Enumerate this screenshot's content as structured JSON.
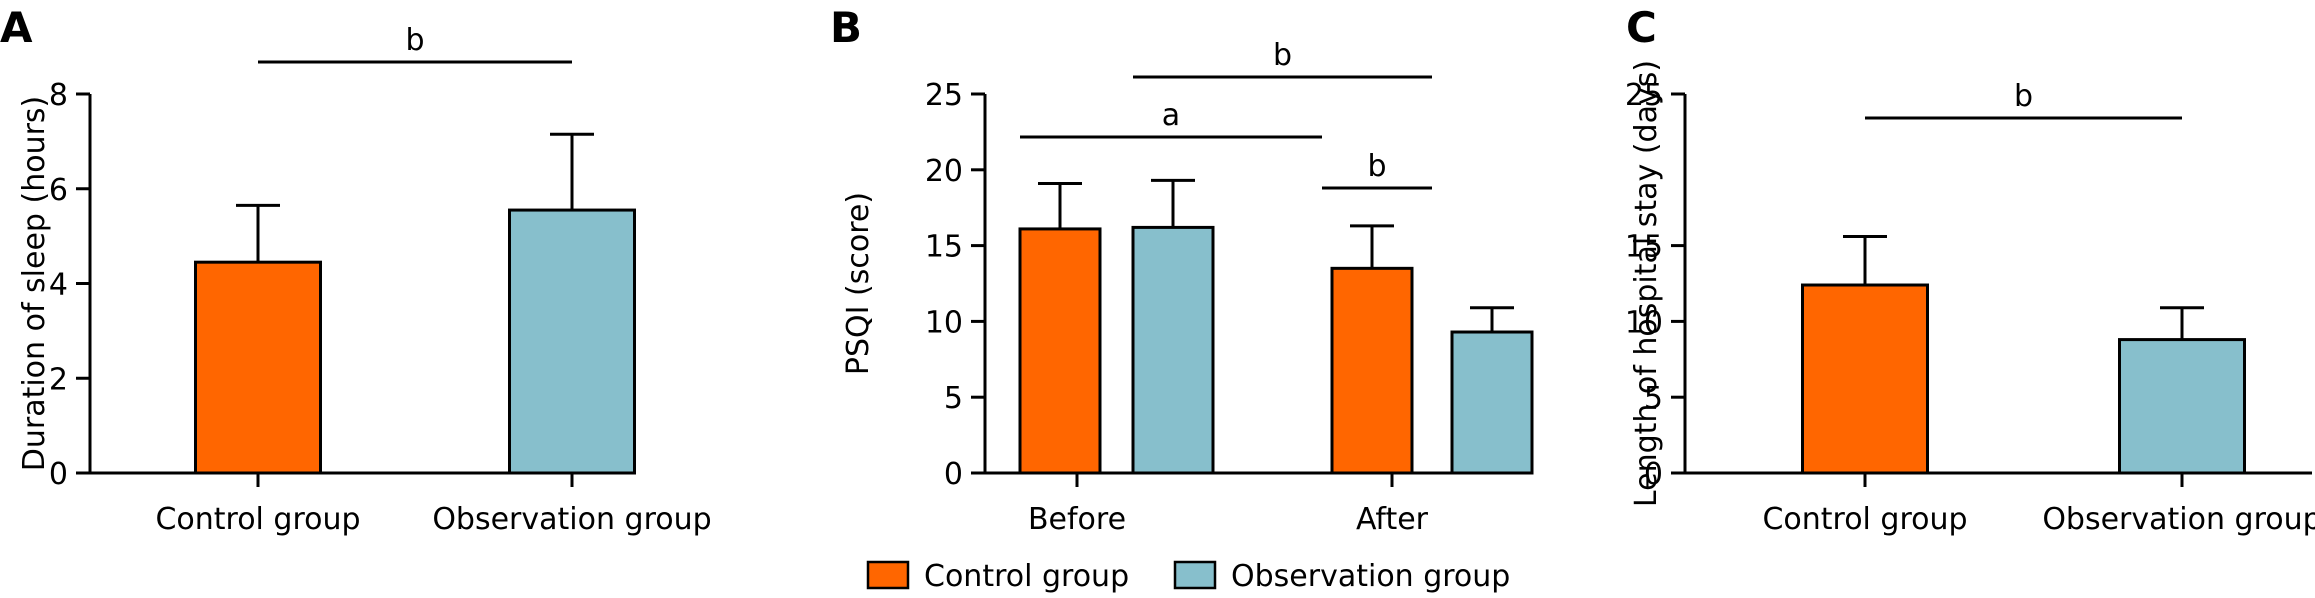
{
  "colors": {
    "control": "#ff6600",
    "observation": "#87bfcc",
    "axis": "#000000"
  },
  "legend": {
    "items": [
      {
        "label": "Control group",
        "color": "#ff6600"
      },
      {
        "label": "Observation group",
        "color": "#87bfcc"
      }
    ]
  },
  "chart_data": [
    {
      "panel": "A",
      "type": "bar",
      "categories": [
        "Control group",
        "Observation group"
      ],
      "values": [
        4.45,
        5.55
      ],
      "errors": [
        1.2,
        1.6
      ],
      "colors": [
        "#ff6600",
        "#87bfcc"
      ],
      "ylabel": "Duration of sleep (hours)",
      "ylim": [
        0,
        8
      ],
      "yticks": [
        0,
        2,
        4,
        6,
        8
      ],
      "significance": [
        {
          "between": [
            0,
            1
          ],
          "label": "b"
        }
      ]
    },
    {
      "panel": "B",
      "type": "bar",
      "categories": [
        "Before",
        "After"
      ],
      "series": [
        {
          "name": "Control group",
          "values": [
            16.1,
            13.5
          ],
          "errors": [
            3.0,
            2.8
          ]
        },
        {
          "name": "Observation group",
          "values": [
            16.2,
            9.3
          ],
          "errors": [
            3.1,
            1.6
          ]
        }
      ],
      "ylabel": "PSQI (score)",
      "ylim": [
        0,
        25
      ],
      "yticks": [
        0,
        5,
        10,
        15,
        20,
        25
      ],
      "significance": [
        {
          "between": [
            "Before-Control group",
            "After-Control group"
          ],
          "label": "a"
        },
        {
          "between": [
            "Before-Observation group",
            "After-Observation group"
          ],
          "label": "b"
        },
        {
          "between": [
            "After-Control group",
            "After-Observation group"
          ],
          "label": "b"
        }
      ],
      "legend": "bottom"
    },
    {
      "panel": "C",
      "type": "bar",
      "categories": [
        "Control group",
        "Observation group"
      ],
      "values": [
        12.4,
        8.8
      ],
      "errors": [
        3.2,
        2.1
      ],
      "colors": [
        "#ff6600",
        "#87bfcc"
      ],
      "ylabel": "Length of hospital stay (days)",
      "ylim": [
        0,
        25
      ],
      "yticks": [
        0,
        5,
        10,
        15,
        25
      ],
      "significance": [
        {
          "between": [
            0,
            1
          ],
          "label": "b"
        }
      ]
    }
  ]
}
